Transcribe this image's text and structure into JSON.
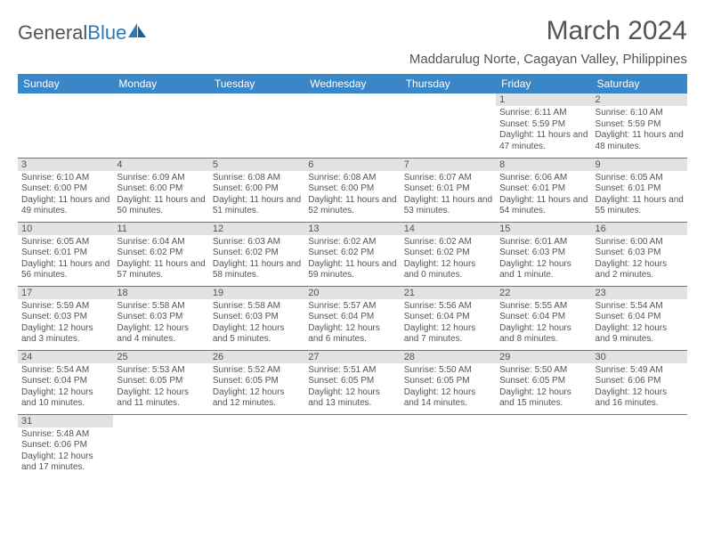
{
  "logo": {
    "word1": "General",
    "word2": "Blue"
  },
  "header": {
    "title": "March 2024",
    "location": "Maddarulug Norte, Cagayan Valley, Philippines"
  },
  "colors": {
    "header_bg": "#3a87c8",
    "header_text": "#ffffff",
    "daynum_bg": "#e2e2e2",
    "text": "#545454",
    "border": "#3a87c8"
  },
  "columns": [
    "Sunday",
    "Monday",
    "Tuesday",
    "Wednesday",
    "Thursday",
    "Friday",
    "Saturday"
  ],
  "weeks": [
    [
      {
        "n": "",
        "sr": "",
        "ss": "",
        "dl": ""
      },
      {
        "n": "",
        "sr": "",
        "ss": "",
        "dl": ""
      },
      {
        "n": "",
        "sr": "",
        "ss": "",
        "dl": ""
      },
      {
        "n": "",
        "sr": "",
        "ss": "",
        "dl": ""
      },
      {
        "n": "",
        "sr": "",
        "ss": "",
        "dl": ""
      },
      {
        "n": "1",
        "sr": "Sunrise: 6:11 AM",
        "ss": "Sunset: 5:59 PM",
        "dl": "Daylight: 11 hours and 47 minutes."
      },
      {
        "n": "2",
        "sr": "Sunrise: 6:10 AM",
        "ss": "Sunset: 5:59 PM",
        "dl": "Daylight: 11 hours and 48 minutes."
      }
    ],
    [
      {
        "n": "3",
        "sr": "Sunrise: 6:10 AM",
        "ss": "Sunset: 6:00 PM",
        "dl": "Daylight: 11 hours and 49 minutes."
      },
      {
        "n": "4",
        "sr": "Sunrise: 6:09 AM",
        "ss": "Sunset: 6:00 PM",
        "dl": "Daylight: 11 hours and 50 minutes."
      },
      {
        "n": "5",
        "sr": "Sunrise: 6:08 AM",
        "ss": "Sunset: 6:00 PM",
        "dl": "Daylight: 11 hours and 51 minutes."
      },
      {
        "n": "6",
        "sr": "Sunrise: 6:08 AM",
        "ss": "Sunset: 6:00 PM",
        "dl": "Daylight: 11 hours and 52 minutes."
      },
      {
        "n": "7",
        "sr": "Sunrise: 6:07 AM",
        "ss": "Sunset: 6:01 PM",
        "dl": "Daylight: 11 hours and 53 minutes."
      },
      {
        "n": "8",
        "sr": "Sunrise: 6:06 AM",
        "ss": "Sunset: 6:01 PM",
        "dl": "Daylight: 11 hours and 54 minutes."
      },
      {
        "n": "9",
        "sr": "Sunrise: 6:05 AM",
        "ss": "Sunset: 6:01 PM",
        "dl": "Daylight: 11 hours and 55 minutes."
      }
    ],
    [
      {
        "n": "10",
        "sr": "Sunrise: 6:05 AM",
        "ss": "Sunset: 6:01 PM",
        "dl": "Daylight: 11 hours and 56 minutes."
      },
      {
        "n": "11",
        "sr": "Sunrise: 6:04 AM",
        "ss": "Sunset: 6:02 PM",
        "dl": "Daylight: 11 hours and 57 minutes."
      },
      {
        "n": "12",
        "sr": "Sunrise: 6:03 AM",
        "ss": "Sunset: 6:02 PM",
        "dl": "Daylight: 11 hours and 58 minutes."
      },
      {
        "n": "13",
        "sr": "Sunrise: 6:02 AM",
        "ss": "Sunset: 6:02 PM",
        "dl": "Daylight: 11 hours and 59 minutes."
      },
      {
        "n": "14",
        "sr": "Sunrise: 6:02 AM",
        "ss": "Sunset: 6:02 PM",
        "dl": "Daylight: 12 hours and 0 minutes."
      },
      {
        "n": "15",
        "sr": "Sunrise: 6:01 AM",
        "ss": "Sunset: 6:03 PM",
        "dl": "Daylight: 12 hours and 1 minute."
      },
      {
        "n": "16",
        "sr": "Sunrise: 6:00 AM",
        "ss": "Sunset: 6:03 PM",
        "dl": "Daylight: 12 hours and 2 minutes."
      }
    ],
    [
      {
        "n": "17",
        "sr": "Sunrise: 5:59 AM",
        "ss": "Sunset: 6:03 PM",
        "dl": "Daylight: 12 hours and 3 minutes."
      },
      {
        "n": "18",
        "sr": "Sunrise: 5:58 AM",
        "ss": "Sunset: 6:03 PM",
        "dl": "Daylight: 12 hours and 4 minutes."
      },
      {
        "n": "19",
        "sr": "Sunrise: 5:58 AM",
        "ss": "Sunset: 6:03 PM",
        "dl": "Daylight: 12 hours and 5 minutes."
      },
      {
        "n": "20",
        "sr": "Sunrise: 5:57 AM",
        "ss": "Sunset: 6:04 PM",
        "dl": "Daylight: 12 hours and 6 minutes."
      },
      {
        "n": "21",
        "sr": "Sunrise: 5:56 AM",
        "ss": "Sunset: 6:04 PM",
        "dl": "Daylight: 12 hours and 7 minutes."
      },
      {
        "n": "22",
        "sr": "Sunrise: 5:55 AM",
        "ss": "Sunset: 6:04 PM",
        "dl": "Daylight: 12 hours and 8 minutes."
      },
      {
        "n": "23",
        "sr": "Sunrise: 5:54 AM",
        "ss": "Sunset: 6:04 PM",
        "dl": "Daylight: 12 hours and 9 minutes."
      }
    ],
    [
      {
        "n": "24",
        "sr": "Sunrise: 5:54 AM",
        "ss": "Sunset: 6:04 PM",
        "dl": "Daylight: 12 hours and 10 minutes."
      },
      {
        "n": "25",
        "sr": "Sunrise: 5:53 AM",
        "ss": "Sunset: 6:05 PM",
        "dl": "Daylight: 12 hours and 11 minutes."
      },
      {
        "n": "26",
        "sr": "Sunrise: 5:52 AM",
        "ss": "Sunset: 6:05 PM",
        "dl": "Daylight: 12 hours and 12 minutes."
      },
      {
        "n": "27",
        "sr": "Sunrise: 5:51 AM",
        "ss": "Sunset: 6:05 PM",
        "dl": "Daylight: 12 hours and 13 minutes."
      },
      {
        "n": "28",
        "sr": "Sunrise: 5:50 AM",
        "ss": "Sunset: 6:05 PM",
        "dl": "Daylight: 12 hours and 14 minutes."
      },
      {
        "n": "29",
        "sr": "Sunrise: 5:50 AM",
        "ss": "Sunset: 6:05 PM",
        "dl": "Daylight: 12 hours and 15 minutes."
      },
      {
        "n": "30",
        "sr": "Sunrise: 5:49 AM",
        "ss": "Sunset: 6:06 PM",
        "dl": "Daylight: 12 hours and 16 minutes."
      }
    ],
    [
      {
        "n": "31",
        "sr": "Sunrise: 5:48 AM",
        "ss": "Sunset: 6:06 PM",
        "dl": "Daylight: 12 hours and 17 minutes."
      },
      {
        "n": "",
        "sr": "",
        "ss": "",
        "dl": ""
      },
      {
        "n": "",
        "sr": "",
        "ss": "",
        "dl": ""
      },
      {
        "n": "",
        "sr": "",
        "ss": "",
        "dl": ""
      },
      {
        "n": "",
        "sr": "",
        "ss": "",
        "dl": ""
      },
      {
        "n": "",
        "sr": "",
        "ss": "",
        "dl": ""
      },
      {
        "n": "",
        "sr": "",
        "ss": "",
        "dl": ""
      }
    ]
  ]
}
